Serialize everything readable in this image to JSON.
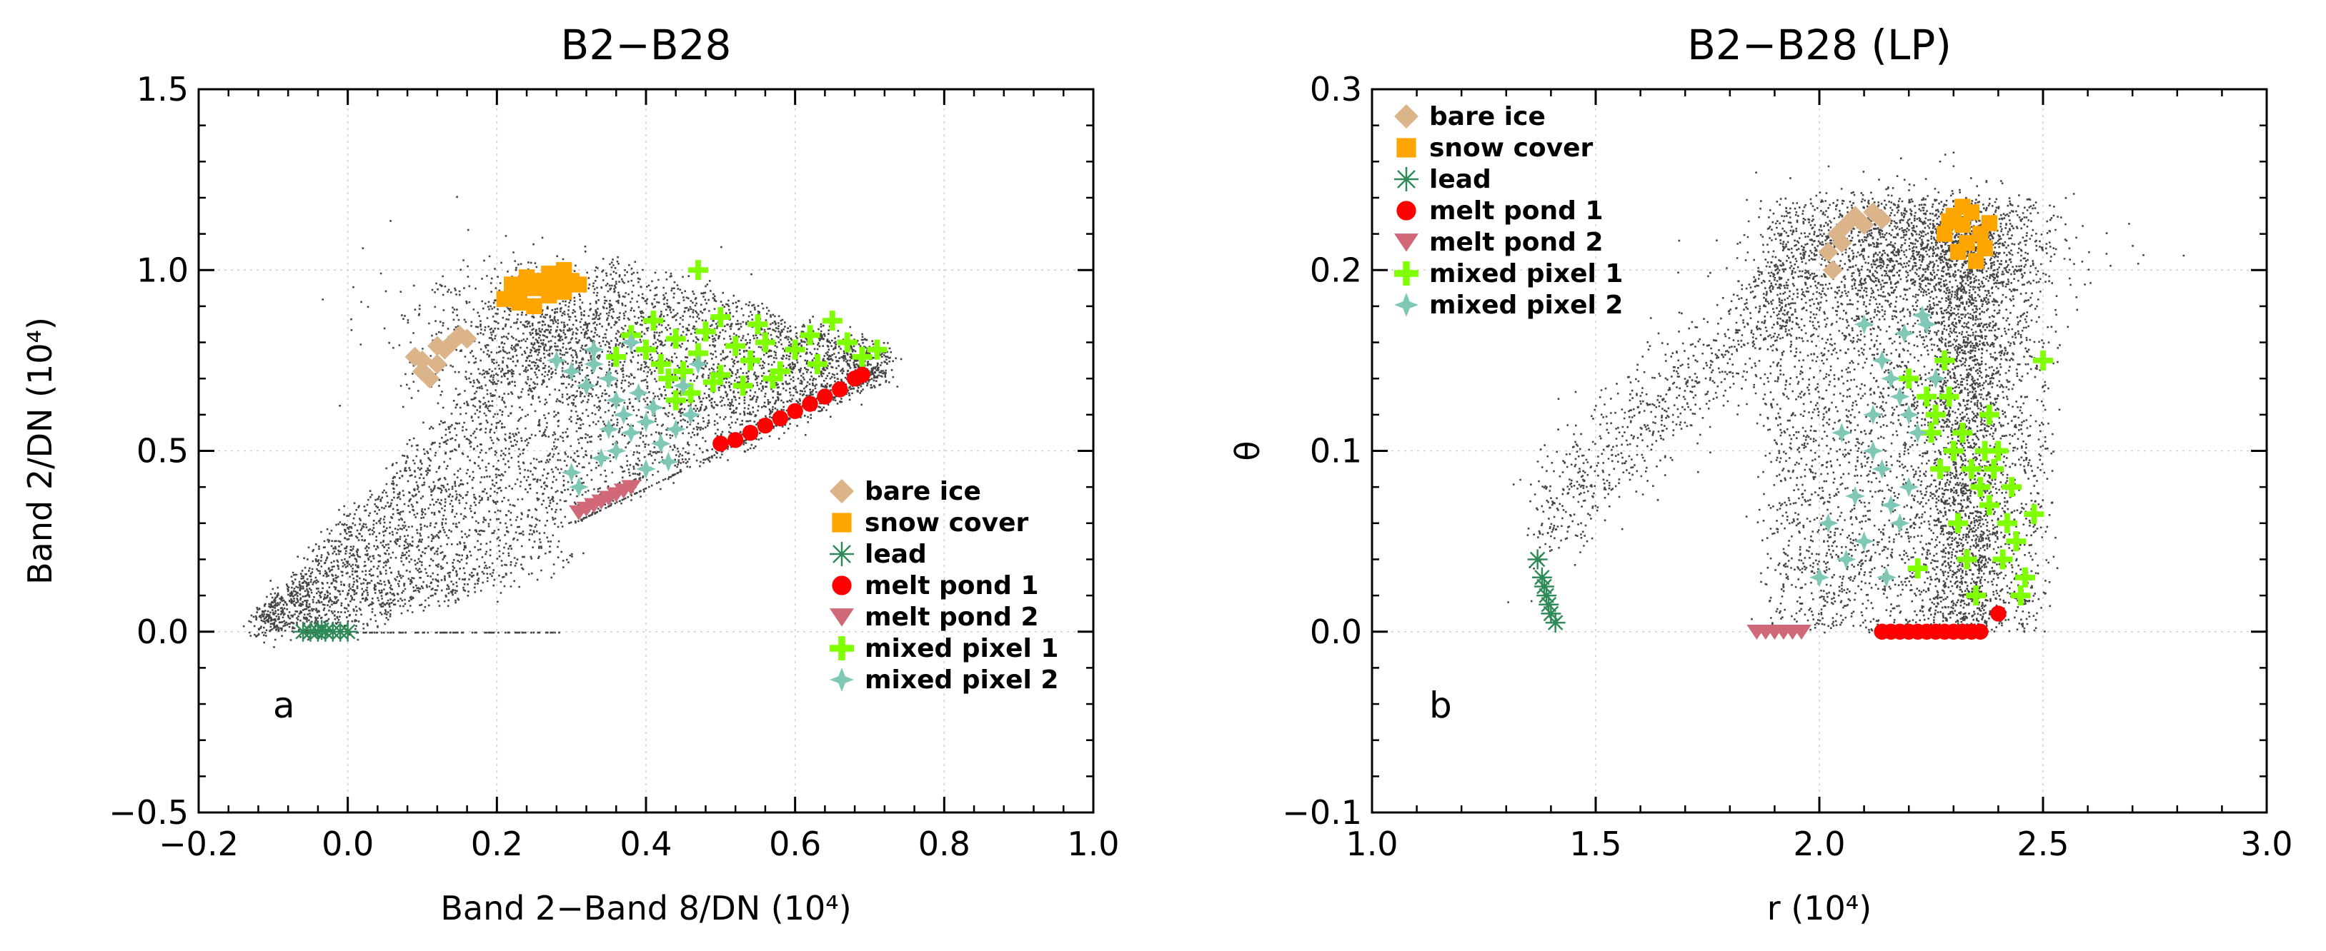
{
  "chart_data": [
    {
      "type": "scatter",
      "panel_letter": "a",
      "title": "B2−B28",
      "xlabel": "Band 2−Band 8/DN (10⁴)",
      "ylabel": "Band 2/DN (10⁴)",
      "xlim": [
        -0.2,
        1.0
      ],
      "ylim": [
        -0.5,
        1.5
      ],
      "xticks": [
        -0.2,
        0.0,
        0.2,
        0.4,
        0.6,
        0.8,
        1.0
      ],
      "xtick_labels": [
        "−0.2",
        "0.0",
        "0.2",
        "0.4",
        "0.6",
        "0.8",
        "1.0"
      ],
      "yticks": [
        -0.5,
        0.0,
        0.5,
        1.0,
        1.5
      ],
      "ytick_labels": [
        "−0.5",
        "0.0",
        "0.5",
        "1.0",
        "1.5"
      ],
      "grid": true,
      "legend_position": "lower-right",
      "series": [
        {
          "name": "bare ice",
          "marker": "diamond",
          "color": "#dcb48a",
          "points": [
            [
              0.09,
              0.76
            ],
            [
              0.1,
              0.72
            ],
            [
              0.11,
              0.7
            ],
            [
              0.12,
              0.74
            ],
            [
              0.13,
              0.78
            ],
            [
              0.14,
              0.8
            ],
            [
              0.15,
              0.82
            ],
            [
              0.16,
              0.81
            ],
            [
              0.12,
              0.79
            ],
            [
              0.1,
              0.75
            ]
          ]
        },
        {
          "name": "snow cover",
          "marker": "square",
          "color": "#ffa500",
          "points": [
            [
              0.21,
              0.92
            ],
            [
              0.22,
              0.96
            ],
            [
              0.23,
              0.94
            ],
            [
              0.24,
              0.98
            ],
            [
              0.25,
              0.95
            ],
            [
              0.26,
              0.97
            ],
            [
              0.27,
              0.99
            ],
            [
              0.28,
              0.96
            ],
            [
              0.29,
              1.0
            ],
            [
              0.3,
              0.97
            ],
            [
              0.23,
              0.91
            ],
            [
              0.25,
              0.9
            ],
            [
              0.27,
              0.93
            ],
            [
              0.29,
              0.94
            ],
            [
              0.31,
              0.96
            ]
          ]
        },
        {
          "name": "lead",
          "marker": "asterisk",
          "color": "#2e8b57",
          "points": [
            [
              -0.06,
              0.0
            ],
            [
              -0.05,
              0.0
            ],
            [
              -0.04,
              0.0
            ],
            [
              -0.03,
              0.0
            ],
            [
              -0.02,
              0.0
            ],
            [
              -0.01,
              0.0
            ],
            [
              0.0,
              0.0
            ],
            [
              -0.035,
              0.005
            ]
          ]
        },
        {
          "name": "melt pond 1",
          "marker": "circle",
          "color": "#ff0000",
          "points": [
            [
              0.5,
              0.52
            ],
            [
              0.52,
              0.53
            ],
            [
              0.54,
              0.55
            ],
            [
              0.56,
              0.57
            ],
            [
              0.58,
              0.59
            ],
            [
              0.6,
              0.61
            ],
            [
              0.62,
              0.63
            ],
            [
              0.64,
              0.65
            ],
            [
              0.66,
              0.67
            ],
            [
              0.68,
              0.7
            ],
            [
              0.69,
              0.71
            ]
          ]
        },
        {
          "name": "melt pond 2",
          "marker": "triangle-down",
          "color": "#d06878",
          "points": [
            [
              0.31,
              0.33
            ],
            [
              0.32,
              0.34
            ],
            [
              0.33,
              0.35
            ],
            [
              0.34,
              0.36
            ],
            [
              0.35,
              0.37
            ],
            [
              0.36,
              0.38
            ],
            [
              0.37,
              0.39
            ],
            [
              0.38,
              0.4
            ]
          ]
        },
        {
          "name": "mixed pixel 1",
          "marker": "plus",
          "color": "#7fff00",
          "points": [
            [
              0.38,
              0.82
            ],
            [
              0.4,
              0.78
            ],
            [
              0.42,
              0.74
            ],
            [
              0.44,
              0.81
            ],
            [
              0.45,
              0.72
            ],
            [
              0.47,
              0.77
            ],
            [
              0.48,
              0.83
            ],
            [
              0.5,
              0.71
            ],
            [
              0.52,
              0.79
            ],
            [
              0.54,
              0.75
            ],
            [
              0.56,
              0.8
            ],
            [
              0.58,
              0.72
            ],
            [
              0.6,
              0.78
            ],
            [
              0.62,
              0.82
            ],
            [
              0.65,
              0.86
            ],
            [
              0.67,
              0.8
            ],
            [
              0.69,
              0.76
            ],
            [
              0.43,
              0.7
            ],
            [
              0.46,
              0.66
            ],
            [
              0.49,
              0.69
            ],
            [
              0.53,
              0.68
            ],
            [
              0.36,
              0.76
            ],
            [
              0.41,
              0.86
            ],
            [
              0.57,
              0.7
            ],
            [
              0.63,
              0.74
            ],
            [
              0.71,
              0.78
            ],
            [
              0.47,
              1.0
            ],
            [
              0.5,
              0.87
            ],
            [
              0.55,
              0.85
            ],
            [
              0.44,
              0.64
            ]
          ]
        },
        {
          "name": "mixed pixel 2",
          "marker": "star4",
          "color": "#7fc8b8",
          "points": [
            [
              0.28,
              0.75
            ],
            [
              0.3,
              0.72
            ],
            [
              0.32,
              0.68
            ],
            [
              0.33,
              0.74
            ],
            [
              0.35,
              0.7
            ],
            [
              0.36,
              0.64
            ],
            [
              0.37,
              0.6
            ],
            [
              0.38,
              0.55
            ],
            [
              0.39,
              0.66
            ],
            [
              0.4,
              0.58
            ],
            [
              0.41,
              0.62
            ],
            [
              0.42,
              0.52
            ],
            [
              0.44,
              0.56
            ],
            [
              0.46,
              0.6
            ],
            [
              0.34,
              0.48
            ],
            [
              0.36,
              0.5
            ],
            [
              0.3,
              0.44
            ],
            [
              0.33,
              0.78
            ],
            [
              0.38,
              0.8
            ],
            [
              0.4,
              0.45
            ],
            [
              0.43,
              0.47
            ],
            [
              0.45,
              0.68
            ],
            [
              0.31,
              0.4
            ],
            [
              0.47,
              0.74
            ],
            [
              0.35,
              0.56
            ]
          ]
        }
      ]
    },
    {
      "type": "scatter",
      "panel_letter": "b",
      "title": "B2−B28 (LP)",
      "xlabel": "r (10⁴)",
      "ylabel": "θ",
      "xlim": [
        1.0,
        3.0
      ],
      "ylim": [
        -0.1,
        0.3
      ],
      "xticks": [
        1.0,
        1.5,
        2.0,
        2.5,
        3.0
      ],
      "xtick_labels": [
        "1.0",
        "1.5",
        "2.0",
        "2.5",
        "3.0"
      ],
      "yticks": [
        -0.1,
        0.0,
        0.1,
        0.2,
        0.3
      ],
      "ytick_labels": [
        "−0.1",
        "0.0",
        "0.1",
        "0.2",
        "0.3"
      ],
      "grid": true,
      "legend_position": "top-left",
      "series": [
        {
          "name": "bare ice",
          "marker": "diamond",
          "color": "#dcb48a",
          "points": [
            [
              2.02,
              0.21
            ],
            [
              2.04,
              0.22
            ],
            [
              2.06,
              0.225
            ],
            [
              2.08,
              0.23
            ],
            [
              2.1,
              0.225
            ],
            [
              2.12,
              0.232
            ],
            [
              2.14,
              0.228
            ],
            [
              2.03,
              0.2
            ],
            [
              2.05,
              0.215
            ]
          ]
        },
        {
          "name": "snow cover",
          "marker": "square",
          "color": "#ffa500",
          "points": [
            [
              2.28,
              0.22
            ],
            [
              2.3,
              0.23
            ],
            [
              2.32,
              0.225
            ],
            [
              2.34,
              0.232
            ],
            [
              2.36,
              0.22
            ],
            [
              2.38,
              0.226
            ],
            [
              2.31,
              0.21
            ],
            [
              2.33,
              0.215
            ],
            [
              2.35,
              0.205
            ],
            [
              2.29,
              0.227
            ],
            [
              2.37,
              0.212
            ],
            [
              2.32,
              0.235
            ]
          ]
        },
        {
          "name": "lead",
          "marker": "asterisk",
          "color": "#2e8b57",
          "points": [
            [
              1.37,
              0.04
            ],
            [
              1.38,
              0.03
            ],
            [
              1.39,
              0.02
            ],
            [
              1.4,
              0.01
            ],
            [
              1.41,
              0.005
            ],
            [
              1.395,
              0.015
            ],
            [
              1.385,
              0.025
            ]
          ]
        },
        {
          "name": "melt pond 1",
          "marker": "circle",
          "color": "#ff0000",
          "points": [
            [
              2.14,
              0.0
            ],
            [
              2.16,
              0.0
            ],
            [
              2.18,
              0.0
            ],
            [
              2.2,
              0.0
            ],
            [
              2.22,
              0.0
            ],
            [
              2.24,
              0.0
            ],
            [
              2.26,
              0.0
            ],
            [
              2.28,
              0.0
            ],
            [
              2.3,
              0.0
            ],
            [
              2.32,
              0.0
            ],
            [
              2.34,
              0.0
            ],
            [
              2.36,
              0.0
            ],
            [
              2.4,
              0.01
            ]
          ]
        },
        {
          "name": "melt pond 2",
          "marker": "triangle-down",
          "color": "#d06878",
          "points": [
            [
              1.86,
              0.0
            ],
            [
              1.88,
              0.0
            ],
            [
              1.9,
              0.0
            ],
            [
              1.92,
              0.0
            ],
            [
              1.94,
              0.0
            ],
            [
              1.96,
              0.0
            ]
          ]
        },
        {
          "name": "mixed pixel 1",
          "marker": "plus",
          "color": "#7fff00",
          "points": [
            [
              2.2,
              0.14
            ],
            [
              2.24,
              0.13
            ],
            [
              2.26,
              0.12
            ],
            [
              2.28,
              0.15
            ],
            [
              2.3,
              0.1
            ],
            [
              2.32,
              0.11
            ],
            [
              2.34,
              0.09
            ],
            [
              2.36,
              0.08
            ],
            [
              2.38,
              0.07
            ],
            [
              2.4,
              0.1
            ],
            [
              2.42,
              0.06
            ],
            [
              2.44,
              0.05
            ],
            [
              2.46,
              0.03
            ],
            [
              2.48,
              0.065
            ],
            [
              2.5,
              0.15
            ],
            [
              2.31,
              0.06
            ],
            [
              2.33,
              0.04
            ],
            [
              2.35,
              0.02
            ],
            [
              2.41,
              0.04
            ],
            [
              2.45,
              0.02
            ],
            [
              2.37,
              0.1
            ],
            [
              2.39,
              0.09
            ],
            [
              2.29,
              0.13
            ],
            [
              2.27,
              0.09
            ],
            [
              2.25,
              0.11
            ],
            [
              2.22,
              0.035
            ],
            [
              2.43,
              0.08
            ],
            [
              2.38,
              0.12
            ]
          ]
        },
        {
          "name": "mixed pixel 2",
          "marker": "star4",
          "color": "#7fc8b8",
          "points": [
            [
              2.1,
              0.17
            ],
            [
              2.14,
              0.15
            ],
            [
              2.16,
              0.14
            ],
            [
              2.18,
              0.13
            ],
            [
              2.2,
              0.12
            ],
            [
              2.22,
              0.11
            ],
            [
              2.24,
              0.17
            ],
            [
              2.12,
              0.1
            ],
            [
              2.14,
              0.09
            ],
            [
              2.16,
              0.07
            ],
            [
              2.18,
              0.06
            ],
            [
              2.2,
              0.08
            ],
            [
              2.1,
              0.05
            ],
            [
              2.06,
              0.04
            ],
            [
              2.08,
              0.075
            ],
            [
              2.02,
              0.06
            ],
            [
              2.12,
              0.12
            ],
            [
              2.0,
              0.03
            ],
            [
              2.26,
              0.14
            ],
            [
              2.19,
              0.165
            ],
            [
              2.23,
              0.175
            ],
            [
              2.05,
              0.11
            ],
            [
              2.15,
              0.03
            ]
          ]
        }
      ]
    }
  ]
}
